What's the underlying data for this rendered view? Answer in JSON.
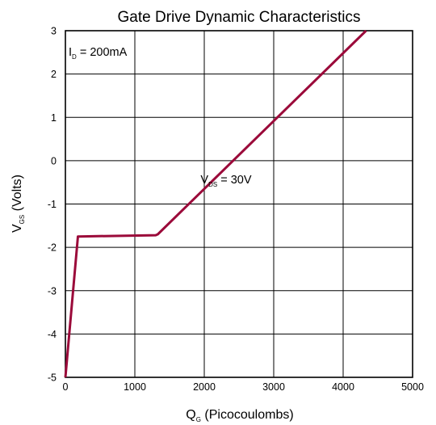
{
  "chart_data": {
    "type": "line",
    "title": "Gate Drive Dynamic Characteristics",
    "xlabel": {
      "main": "Q",
      "sub": "G",
      "rest": " (Picocoulombs)"
    },
    "ylabel": {
      "main": "V",
      "sub": "GS",
      "rest": " (Volts)"
    },
    "xlim": [
      0,
      5000
    ],
    "ylim": [
      -5,
      3
    ],
    "xticks": [
      0,
      1000,
      2000,
      3000,
      4000,
      5000
    ],
    "yticks": [
      -5,
      -4,
      -3,
      -2,
      -1,
      0,
      1,
      2,
      3
    ],
    "grid": true,
    "line_color": "#9b0a3a",
    "annotations": [
      {
        "id": "id",
        "main": "I",
        "sub": "D",
        "rest": " = 200mA",
        "x": 500,
        "y": 2.5
      },
      {
        "id": "vds",
        "main": "V",
        "sub": "DS",
        "rest": " = 30V",
        "x": 2400,
        "y": -0.45
      }
    ],
    "series": [
      {
        "x": [
          0,
          180,
          1300,
          1330,
          4330
        ],
        "y": [
          -5,
          -1.75,
          -1.72,
          -1.7,
          3
        ]
      }
    ]
  }
}
